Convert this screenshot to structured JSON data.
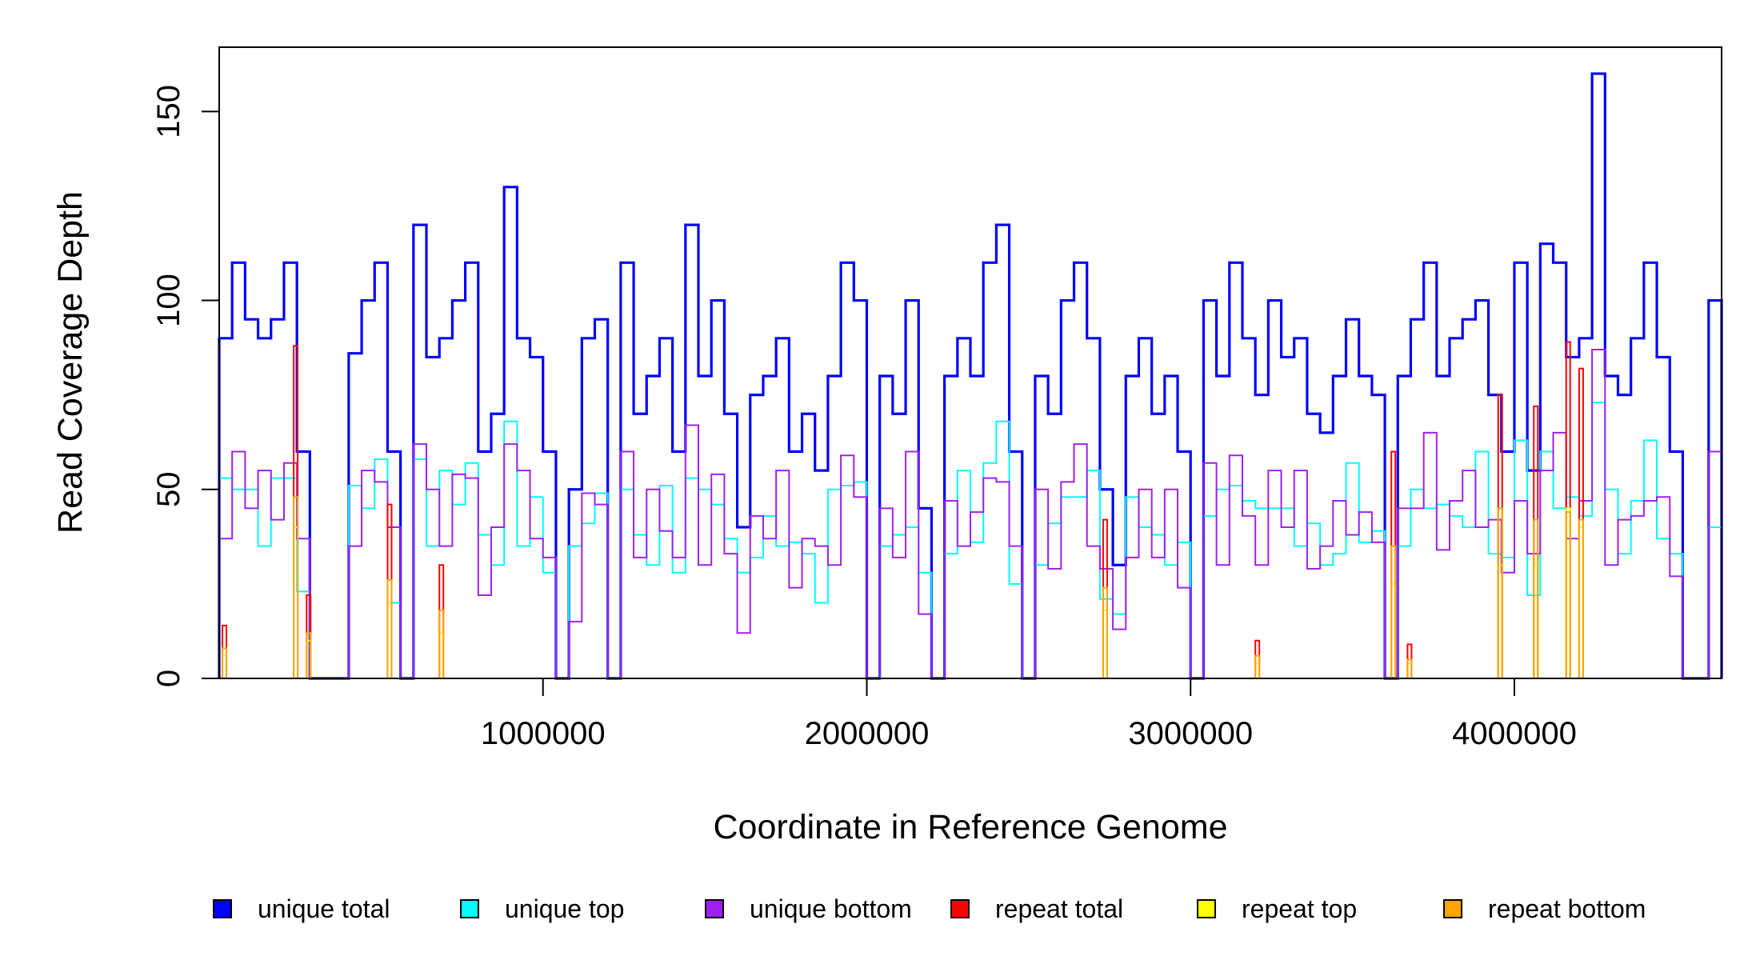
{
  "chart_data": {
    "type": "line",
    "step": true,
    "title": "",
    "xlabel": "Coordinate in Reference Genome",
    "ylabel": "Read Coverage Depth",
    "xlim": [
      0,
      4640000
    ],
    "ylim": [
      0,
      167
    ],
    "x_ticks": [
      1000000,
      2000000,
      3000000,
      4000000
    ],
    "x_tick_labels": [
      "1000000",
      "2000000",
      "3000000",
      "4000000"
    ],
    "y_ticks": [
      0,
      50,
      100,
      150
    ],
    "y_tick_labels": [
      "0",
      "50",
      "100",
      "150"
    ],
    "grid": false,
    "legend_position": "bottom",
    "bin_width": 40000,
    "x_start": 0,
    "series": [
      {
        "name": "unique total",
        "color": "#0000FF",
        "values": [
          90,
          110,
          95,
          90,
          95,
          110,
          60,
          0,
          0,
          0,
          86,
          100,
          110,
          60,
          0,
          120,
          85,
          90,
          100,
          110,
          60,
          70,
          130,
          90,
          85,
          60,
          0,
          50,
          90,
          95,
          0,
          110,
          70,
          80,
          90,
          60,
          120,
          80,
          100,
          70,
          40,
          75,
          80,
          90,
          60,
          70,
          55,
          80,
          110,
          100,
          0,
          80,
          70,
          100,
          45,
          0,
          80,
          90,
          80,
          110,
          120,
          60,
          0,
          80,
          70,
          100,
          110,
          90,
          50,
          30,
          80,
          90,
          70,
          80,
          60,
          0,
          100,
          80,
          110,
          90,
          75,
          100,
          85,
          90,
          70,
          65,
          80,
          95,
          80,
          75,
          0,
          80,
          95,
          110,
          80,
          90,
          95,
          100,
          75,
          60,
          110,
          55,
          115,
          110,
          85,
          90,
          160,
          80,
          75,
          90,
          110,
          85,
          60,
          0,
          0,
          100
        ]
      },
      {
        "name": "unique top",
        "color": "#00FFFF",
        "values": [
          53,
          50,
          50,
          35,
          53,
          53,
          23,
          0,
          0,
          0,
          51,
          45,
          58,
          20,
          0,
          58,
          35,
          55,
          46,
          57,
          38,
          30,
          68,
          35,
          48,
          28,
          0,
          35,
          41,
          49,
          0,
          50,
          38,
          30,
          51,
          28,
          53,
          50,
          46,
          37,
          28,
          32,
          43,
          35,
          36,
          33,
          20,
          50,
          51,
          52,
          0,
          35,
          38,
          40,
          28,
          0,
          33,
          55,
          36,
          57,
          68,
          25,
          0,
          30,
          41,
          48,
          48,
          55,
          21,
          17,
          48,
          40,
          38,
          30,
          36,
          0,
          43,
          50,
          51,
          47,
          45,
          45,
          45,
          35,
          41,
          30,
          33,
          57,
          36,
          39,
          0,
          35,
          50,
          45,
          46,
          43,
          40,
          60,
          33,
          32,
          63,
          22,
          60,
          45,
          48,
          43,
          73,
          50,
          33,
          47,
          63,
          37,
          33,
          0,
          0,
          40
        ]
      },
      {
        "name": "unique bottom",
        "color": "#A020F0",
        "values": [
          37,
          60,
          45,
          55,
          42,
          57,
          37,
          0,
          0,
          0,
          35,
          55,
          52,
          40,
          0,
          62,
          50,
          35,
          54,
          53,
          22,
          40,
          62,
          55,
          37,
          32,
          0,
          15,
          49,
          46,
          0,
          60,
          32,
          50,
          39,
          32,
          67,
          30,
          54,
          33,
          12,
          43,
          37,
          55,
          24,
          37,
          35,
          30,
          59,
          48,
          0,
          45,
          32,
          60,
          17,
          0,
          47,
          35,
          44,
          53,
          52,
          35,
          0,
          50,
          29,
          52,
          62,
          35,
          29,
          13,
          32,
          50,
          32,
          50,
          24,
          0,
          57,
          30,
          59,
          43,
          30,
          55,
          40,
          55,
          29,
          35,
          47,
          38,
          44,
          36,
          0,
          45,
          45,
          65,
          34,
          47,
          55,
          40,
          42,
          28,
          47,
          33,
          55,
          65,
          37,
          47,
          87,
          30,
          42,
          43,
          47,
          48,
          27,
          0,
          0,
          60
        ]
      },
      {
        "name": "repeat total",
        "color": "#FF0000",
        "points": [
          {
            "x": 10000,
            "y": 14
          },
          {
            "x": 230000,
            "y": 88
          },
          {
            "x": 270000,
            "y": 22
          },
          {
            "x": 520000,
            "y": 46
          },
          {
            "x": 680000,
            "y": 30
          },
          {
            "x": 2730000,
            "y": 42
          },
          {
            "x": 3200000,
            "y": 10
          },
          {
            "x": 3620000,
            "y": 60
          },
          {
            "x": 3670000,
            "y": 9
          },
          {
            "x": 3950000,
            "y": 75
          },
          {
            "x": 4060000,
            "y": 72
          },
          {
            "x": 4160000,
            "y": 89
          },
          {
            "x": 4200000,
            "y": 82
          }
        ]
      },
      {
        "name": "repeat top",
        "color": "#FFFF00",
        "points": [
          {
            "x": 10000,
            "y": 6
          },
          {
            "x": 230000,
            "y": 40
          },
          {
            "x": 270000,
            "y": 10
          },
          {
            "x": 520000,
            "y": 20
          },
          {
            "x": 680000,
            "y": 12
          },
          {
            "x": 2730000,
            "y": 18
          },
          {
            "x": 3200000,
            "y": 4
          },
          {
            "x": 3620000,
            "y": 25
          },
          {
            "x": 3670000,
            "y": 4
          },
          {
            "x": 3950000,
            "y": 30
          },
          {
            "x": 4060000,
            "y": 30
          },
          {
            "x": 4160000,
            "y": 45
          },
          {
            "x": 4200000,
            "y": 40
          }
        ]
      },
      {
        "name": "repeat bottom",
        "color": "#FFA500",
        "points": [
          {
            "x": 10000,
            "y": 8
          },
          {
            "x": 230000,
            "y": 48
          },
          {
            "x": 270000,
            "y": 12
          },
          {
            "x": 520000,
            "y": 26
          },
          {
            "x": 680000,
            "y": 18
          },
          {
            "x": 2730000,
            "y": 24
          },
          {
            "x": 3200000,
            "y": 6
          },
          {
            "x": 3620000,
            "y": 35
          },
          {
            "x": 3670000,
            "y": 5
          },
          {
            "x": 3950000,
            "y": 45
          },
          {
            "x": 4060000,
            "y": 42
          },
          {
            "x": 4160000,
            "y": 44
          },
          {
            "x": 4200000,
            "y": 42
          }
        ]
      }
    ]
  }
}
